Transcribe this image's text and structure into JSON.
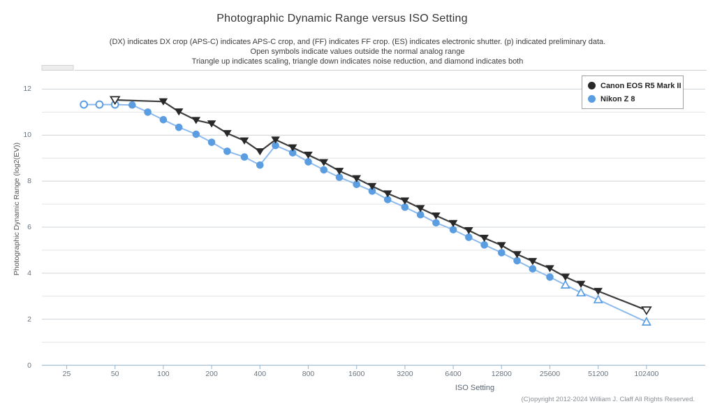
{
  "header": {
    "title": "Photographic Dynamic Range versus ISO Setting",
    "subtitle_lines": [
      "(DX) indicates DX crop (APS-C) indicates APS-C crop, and (FF) indicates FF crop. (ES) indicates electronic shutter. (p) indicated preliminary data.",
      "Open symbols indicate values outside the normal analog range",
      "Triangle up indicates scaling, triangle down indicates noise reduction, and diamond indicates both"
    ]
  },
  "chart_data": {
    "type": "line",
    "title": "Photographic Dynamic Range versus ISO Setting",
    "xlabel": "ISO Setting",
    "ylabel": "Photographic Dynamic Range (log2(EV))",
    "x_scale": "log2",
    "ylim": [
      0,
      12.8
    ],
    "x_ticks": [
      25,
      50,
      100,
      200,
      400,
      800,
      1600,
      3200,
      6400,
      12800,
      25600,
      51200,
      102400
    ],
    "y_ticks": [
      0,
      2,
      4,
      6,
      8,
      10,
      12
    ],
    "grid": "horizontal lines every 1 EV, labels every 2 EV",
    "legend_position": "top-right",
    "marker_legend": {
      "open_symbol": "value outside the normal analog range",
      "triangle_down": "noise reduction",
      "triangle_up": "scaling",
      "diamond": "both scaling and noise reduction"
    },
    "series": [
      {
        "name": "Canon EOS R5 Mark II",
        "color": "#3d3d3d",
        "marker_color": "#282828",
        "x": [
          50,
          100,
          125,
          160,
          200,
          250,
          320,
          400,
          500,
          640,
          800,
          1000,
          1250,
          1600,
          2000,
          2500,
          3200,
          4000,
          5000,
          6400,
          8000,
          10000,
          12800,
          16000,
          20000,
          25600,
          32000,
          40000,
          51200,
          102400
        ],
        "values": [
          11.53,
          11.46,
          11.02,
          10.65,
          10.5,
          10.08,
          9.76,
          9.29,
          9.8,
          9.46,
          9.14,
          8.82,
          8.44,
          8.12,
          7.78,
          7.46,
          7.15,
          6.82,
          6.5,
          6.17,
          5.86,
          5.53,
          5.21,
          4.82,
          4.52,
          4.21,
          3.84,
          3.53,
          3.22,
          2.39
        ],
        "markers": [
          "triangle-down-open",
          "triangle-down",
          "triangle-down",
          "triangle-down",
          "triangle-down",
          "triangle-down",
          "triangle-down",
          "triangle-down",
          "triangle-down",
          "triangle-down",
          "triangle-down",
          "triangle-down",
          "triangle-down",
          "triangle-down",
          "triangle-down",
          "triangle-down",
          "triangle-down",
          "triangle-down",
          "triangle-down",
          "triangle-down",
          "triangle-down",
          "triangle-down",
          "triangle-down",
          "triangle-down",
          "triangle-down",
          "triangle-down",
          "triangle-down",
          "triangle-down",
          "triangle-down",
          "triangle-down-open"
        ]
      },
      {
        "name": "Nikon Z 8",
        "color": "#8cbaed",
        "marker_color": "#5a9de1",
        "x": [
          32,
          40,
          50,
          64,
          80,
          100,
          125,
          160,
          200,
          250,
          320,
          400,
          500,
          640,
          800,
          1000,
          1250,
          1600,
          2000,
          2500,
          3200,
          4000,
          5000,
          6400,
          8000,
          10000,
          12800,
          16000,
          20000,
          25600,
          32000,
          40000,
          51200,
          102400
        ],
        "values": [
          11.33,
          11.33,
          11.33,
          11.31,
          11.0,
          10.67,
          10.34,
          10.04,
          9.69,
          9.3,
          9.05,
          8.7,
          9.55,
          9.23,
          8.84,
          8.49,
          8.17,
          7.86,
          7.57,
          7.2,
          6.87,
          6.54,
          6.19,
          5.89,
          5.56,
          5.23,
          4.89,
          4.54,
          4.19,
          3.83,
          3.49,
          3.15,
          2.85,
          1.88
        ],
        "markers": [
          "circle-open",
          "circle-open",
          "circle-open",
          "circle",
          "circle",
          "circle",
          "circle",
          "circle",
          "circle",
          "circle",
          "circle",
          "circle",
          "circle",
          "circle",
          "circle",
          "circle",
          "circle",
          "circle",
          "circle",
          "circle",
          "circle",
          "circle",
          "circle",
          "circle",
          "circle",
          "circle",
          "circle",
          "circle",
          "circle",
          "circle",
          "triangle-up-open",
          "triangle-up-open",
          "triangle-up-open",
          "triangle-up-open"
        ]
      }
    ],
    "footer": "(C)opyright 2012-2024 William J. Claff All Rights Reserved."
  }
}
